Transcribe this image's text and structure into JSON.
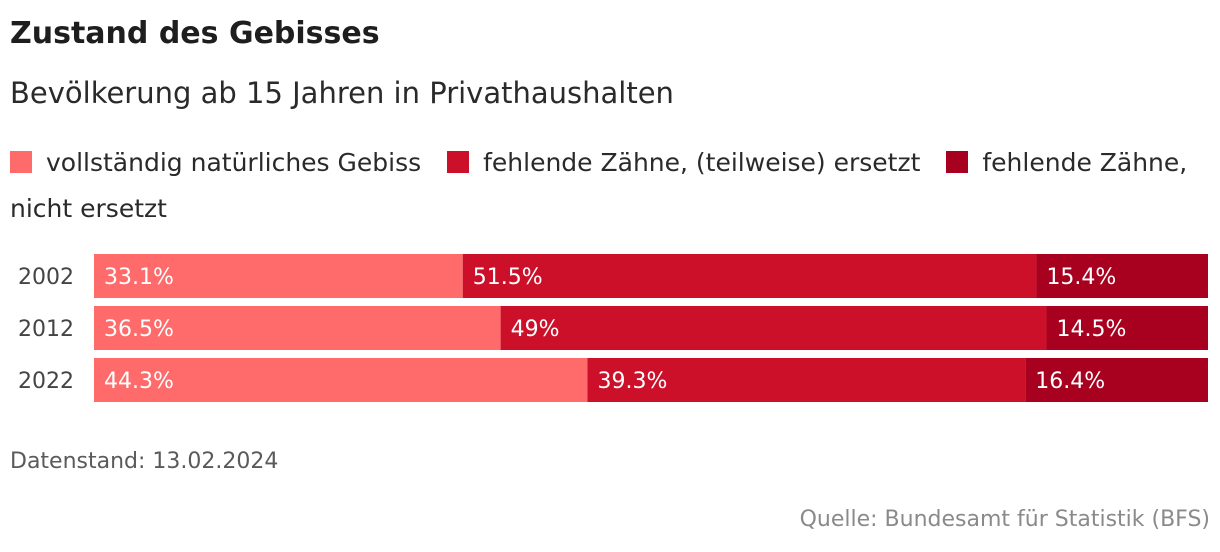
{
  "header": {
    "title": "Zustand des Gebisses",
    "subtitle": "Bevölkerung ab 15 Jahren in Privathaushalten"
  },
  "legend": [
    {
      "label": "vollständig natürliches Gebiss",
      "color": "#ff6b6b"
    },
    {
      "label": "fehlende Zähne, (teilweise) ersetzt",
      "color": "#cc1029"
    },
    {
      "label": "fehlende Zähne, nicht ersetzt",
      "color": "#a8001f"
    }
  ],
  "chart_data": {
    "type": "bar",
    "orientation": "horizontal",
    "stacked": true,
    "normalized": true,
    "categories": [
      "2002",
      "2012",
      "2022"
    ],
    "series": [
      {
        "name": "vollständig natürliches Gebiss",
        "values": [
          33.1,
          36.5,
          44.3
        ],
        "labels": [
          "33.1%",
          "36.5%",
          "44.3%"
        ],
        "color": "#ff6b6b"
      },
      {
        "name": "fehlende Zähne, (teilweise) ersetzt",
        "values": [
          51.5,
          49,
          39.3
        ],
        "labels": [
          "51.5%",
          "49%",
          "39.3%"
        ],
        "color": "#cc1029"
      },
      {
        "name": "fehlende Zähne, nicht ersetzt",
        "values": [
          15.4,
          14.5,
          16.4
        ],
        "labels": [
          "15.4%",
          "14.5%",
          "16.4%"
        ],
        "color": "#a8001f"
      }
    ],
    "legend_position": "top",
    "grid": false
  },
  "footer": {
    "note": "Datenstand: 13.02.2024",
    "source": "Quelle: Bundesamt für Statistik (BFS)"
  }
}
